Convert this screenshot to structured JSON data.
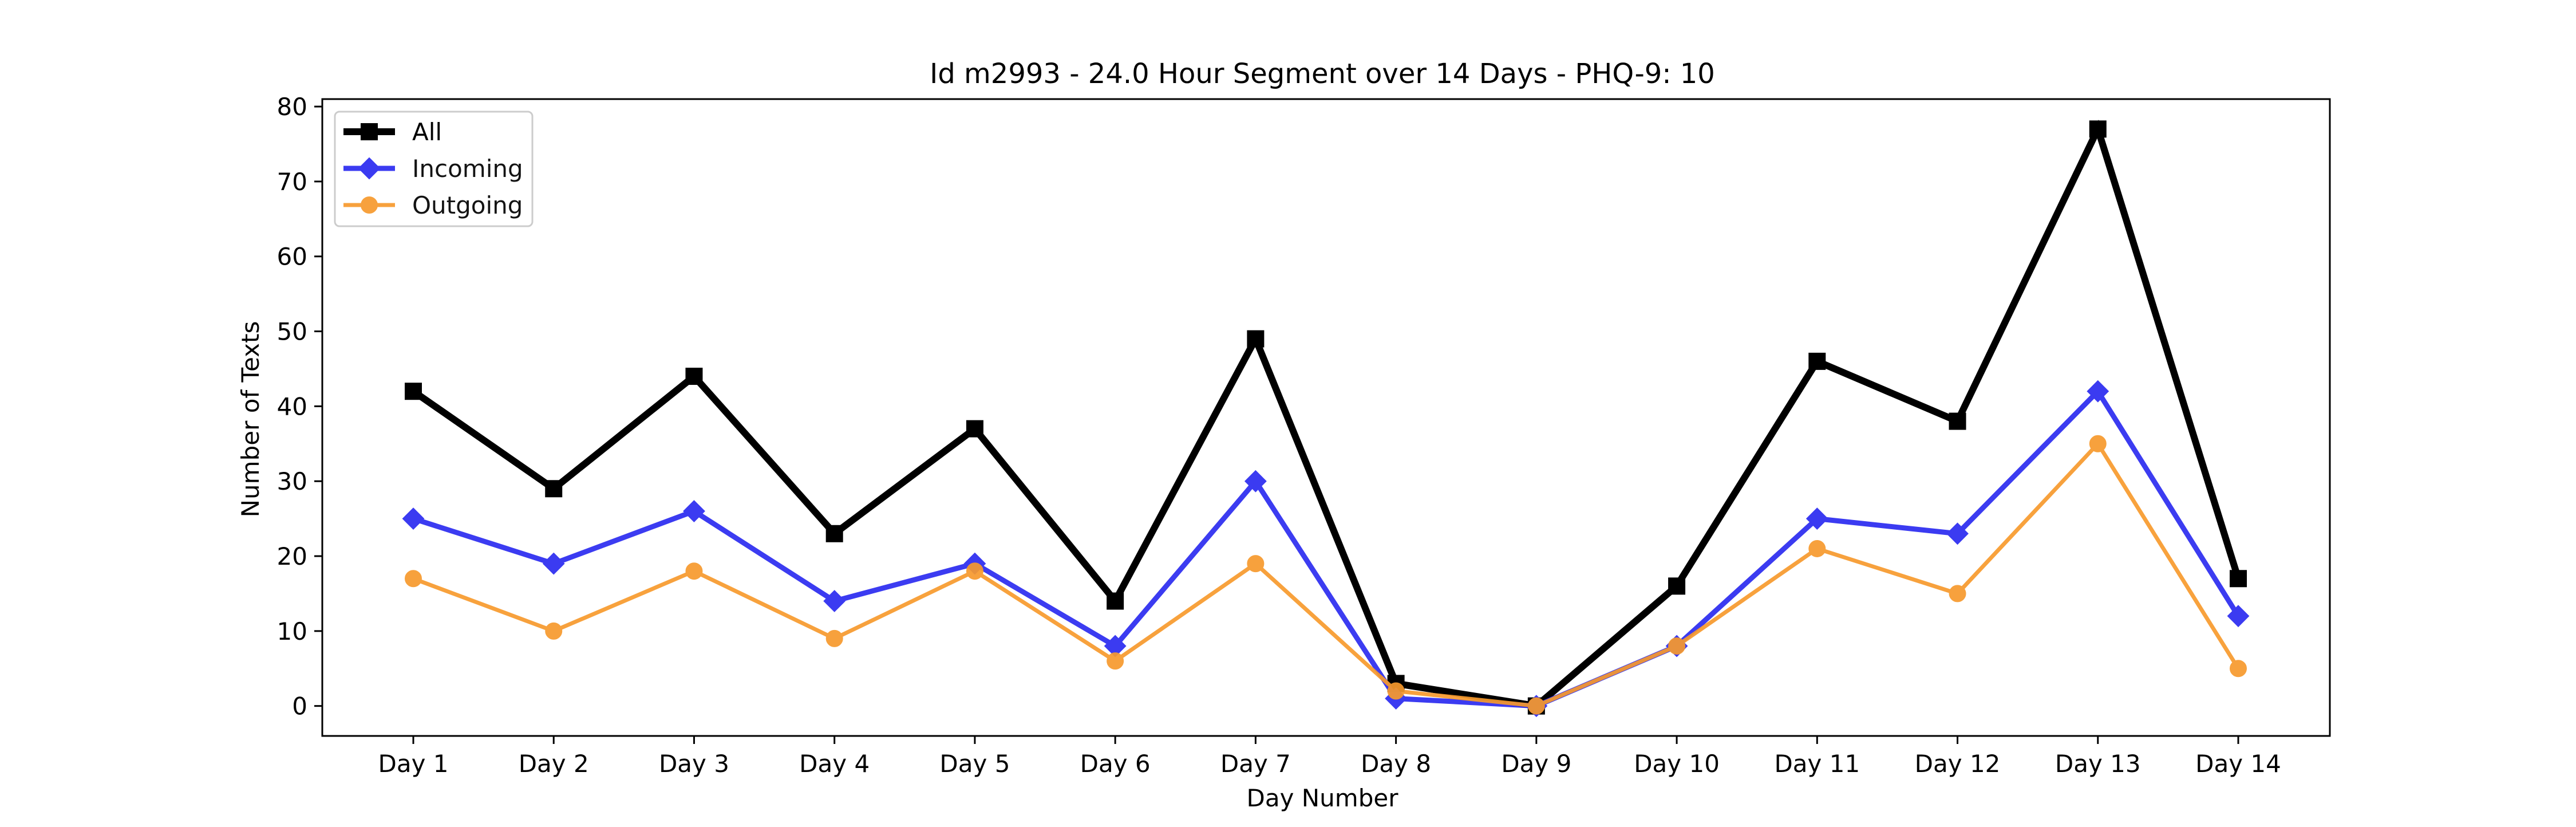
{
  "chart_data": {
    "type": "line",
    "title": "Id m2993 - 24.0 Hour Segment over 14 Days - PHQ-9: 10",
    "xlabel": "Day Number",
    "ylabel": "Number of Texts",
    "categories": [
      "Day 1",
      "Day 2",
      "Day 3",
      "Day 4",
      "Day 5",
      "Day 6",
      "Day 7",
      "Day 8",
      "Day 9",
      "Day 10",
      "Day 11",
      "Day 12",
      "Day 13",
      "Day 14"
    ],
    "ylim": [
      -4,
      81
    ],
    "yticks": [
      0,
      10,
      20,
      30,
      40,
      50,
      60,
      70,
      80
    ],
    "grid": false,
    "legend_position": "top-left",
    "series": [
      {
        "name": "All",
        "color": "#000000",
        "marker": "square",
        "values": [
          42,
          29,
          44,
          23,
          37,
          14,
          49,
          3,
          0,
          16,
          46,
          38,
          77,
          17
        ]
      },
      {
        "name": "Incoming",
        "color": "#2b2bf0",
        "marker": "diamond",
        "values": [
          25,
          19,
          26,
          14,
          19,
          8,
          30,
          1,
          0,
          8,
          25,
          23,
          42,
          12
        ]
      },
      {
        "name": "Outgoing",
        "color": "#f79a2d",
        "marker": "circle",
        "values": [
          17,
          10,
          18,
          9,
          18,
          6,
          19,
          2,
          0,
          8,
          21,
          15,
          35,
          5
        ]
      }
    ]
  }
}
